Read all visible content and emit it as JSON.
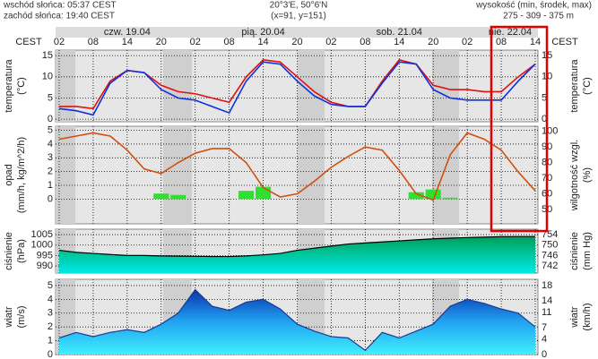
{
  "header": {
    "sunrise": "wschód słońca: 05:37 CEST",
    "sunset": "zachód słońca: 19:40 CEST",
    "coords": "20°3'E, 50°6'N",
    "gridpoint": "(x=91, y=151)",
    "elevation_title": "wysokość (min, środek, max)",
    "elevation": "275 - 309 - 375 m"
  },
  "time_axis": {
    "tz_left": "CEST",
    "tz_right": "CEST",
    "days": [
      "czw. 19.04",
      "pią. 20.04",
      "sob. 21.04",
      "nie. 22.04"
    ],
    "xlim": [
      2,
      86
    ],
    "xticks": [
      {
        "value": 2,
        "label": "02"
      },
      {
        "value": 8,
        "label": "08"
      },
      14,
      20,
      {
        "value": 26,
        "label": "02"
      },
      {
        "value": 32,
        "label": "08"
      },
      {
        "value": 38,
        "label": "14"
      },
      {
        "value": 44,
        "label": "20"
      },
      {
        "value": 50,
        "label": "02"
      },
      {
        "value": 56,
        "label": "08"
      },
      {
        "value": 62,
        "label": "14"
      },
      {
        "value": 68,
        "label": "20"
      },
      {
        "value": 74,
        "label": "02"
      },
      {
        "value": 80,
        "label": "08"
      },
      {
        "value": 86,
        "label": "14"
      }
    ],
    "x": [
      2,
      5,
      8,
      11,
      14,
      17,
      20,
      23,
      26,
      29,
      32,
      35,
      38,
      41,
      44,
      47,
      50,
      53,
      56,
      59,
      62,
      65,
      68,
      71,
      74,
      77,
      80,
      83,
      86
    ]
  },
  "chart_data": [
    {
      "type": "line",
      "ylabel": "temperatura",
      "yunit": "(°C)",
      "y2label": "temperatura",
      "y2unit": "(°C)",
      "ylim": [
        -0.6,
        16.3
      ],
      "yticks": [
        0,
        5,
        10,
        15
      ],
      "y2lim": [
        -0.6,
        16.3
      ],
      "y2ticks": [
        0,
        5,
        10,
        15
      ],
      "grid": true,
      "series": [
        {
          "color": "#e01010",
          "values": [
            3,
            3,
            2.5,
            9,
            11.5,
            11,
            8,
            6.5,
            6,
            5,
            4,
            10,
            14,
            13.5,
            10,
            6.5,
            4,
            3,
            3,
            9,
            14,
            13,
            8,
            7,
            7,
            6.5,
            6.5,
            10,
            13
          ]
        },
        {
          "color": "#1030e0",
          "values": [
            2.5,
            2,
            1,
            8.5,
            11.5,
            11,
            7,
            5,
            4.5,
            3,
            1.5,
            9,
            13.5,
            13,
            9,
            5.5,
            3.5,
            3,
            3,
            8.5,
            13.5,
            13,
            7,
            5,
            4.5,
            4.5,
            4.5,
            9,
            13
          ]
        }
      ]
    },
    {
      "type": "bar-line",
      "ylabel": "opad",
      "yunit": "(mm/h, kg/m^2/h)",
      "y2label": "wilgotność wzgl.",
      "y2unit": "(%)",
      "ylim": [
        -1.8,
        5.3
      ],
      "yticks": [
        0,
        1,
        2,
        3,
        4,
        5
      ],
      "y2lim": [
        40.8,
        103.3
      ],
      "y2ticks": [
        50,
        60,
        70,
        80,
        90,
        100
      ],
      "grid": true,
      "series": [
        {
          "color": "#30e030",
          "values": [
            0,
            0,
            0,
            0,
            0,
            0,
            0.4,
            0.3,
            0,
            0,
            0,
            0.6,
            0.9,
            0,
            0,
            0,
            0,
            0,
            0,
            0,
            0,
            0.5,
            0.7,
            0.1,
            0,
            0,
            0,
            0,
            0
          ]
        },
        {
          "color": "#d05010",
          "axis": "y2",
          "values": [
            95,
            97,
            99,
            97,
            88,
            76,
            73,
            80,
            86,
            89,
            89,
            80,
            64,
            58,
            60,
            68,
            77,
            84,
            90,
            88,
            75,
            60,
            56,
            85,
            99,
            95,
            88,
            74,
            62
          ]
        }
      ]
    },
    {
      "type": "area",
      "ylabel": "ciśnienie",
      "yunit": "(hPa)",
      "y2label": "ciśnienie",
      "y2unit": "(mm Hg)",
      "ylim": [
        986.6,
        1007.6
      ],
      "yticks": [
        990,
        995,
        1000,
        1005
      ],
      "y2lim": [
        739.3,
        756.1
      ],
      "y2ticks": [
        742,
        746,
        750,
        754
      ],
      "grid": true,
      "series": [
        {
          "color": "#000000",
          "values": [
            997.5,
            996.5,
            996,
            995.5,
            995,
            995,
            994.8,
            994.7,
            994.6,
            994.5,
            994.5,
            994.8,
            995.3,
            996,
            997.5,
            998.5,
            999.5,
            1000.5,
            1001,
            1001.5,
            1002,
            1002.5,
            1003,
            1003.3,
            1003.6,
            1003.8,
            1004,
            1004.1,
            1004.1
          ]
        }
      ]
    },
    {
      "type": "area",
      "ylabel": "wiatr",
      "yunit": "(m/s)",
      "y2label": "wiatr",
      "y2unit": "(km/h)",
      "ylim": [
        0,
        5.45
      ],
      "yticks": [
        0,
        1,
        2,
        3,
        4,
        5
      ],
      "y2lim": [
        0,
        19.6
      ],
      "y2ticks": [
        0,
        4,
        7,
        11,
        14,
        18
      ],
      "grid": true,
      "series": [
        {
          "color": "#1a3a90",
          "values": [
            1.2,
            1.6,
            1.3,
            1.6,
            1.8,
            1.6,
            2.2,
            3,
            4.7,
            3.5,
            3.2,
            3.8,
            4,
            3.3,
            2.2,
            1.7,
            1.3,
            1.2,
            0.3,
            1.6,
            1.2,
            1.7,
            2.2,
            3.5,
            4,
            3.7,
            3.3,
            3,
            2
          ]
        }
      ]
    }
  ]
}
